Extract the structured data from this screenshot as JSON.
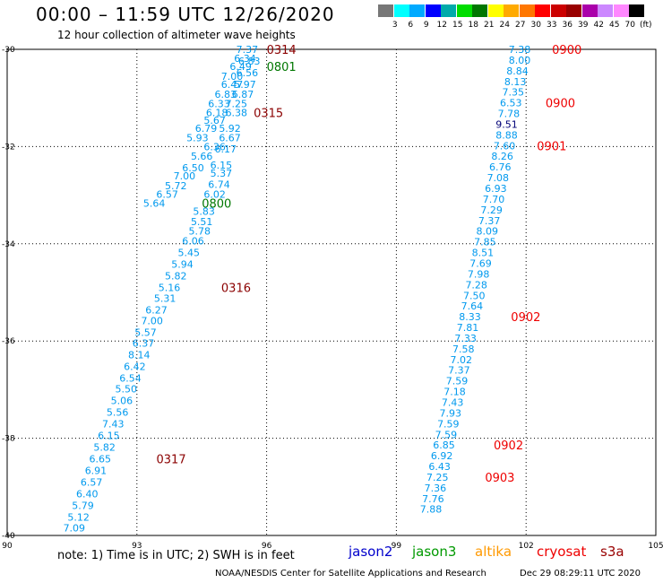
{
  "header": {
    "title": "00:00 – 11:59 UTC 12/26/2020",
    "subtitle": "12 hour collection of altimeter wave heights"
  },
  "colorbar": {
    "colors": [
      "#777777",
      "#00ffff",
      "#00aaff",
      "#0000ff",
      "#00aaaa",
      "#00dd00",
      "#007700",
      "#ffff00",
      "#ffaa00",
      "#ff7700",
      "#ff0000",
      "#cc0000",
      "#990000",
      "#aa00aa",
      "#cc88ff",
      "#ff88ff",
      "#000000"
    ],
    "labels": [
      "3",
      "6",
      "9",
      "12",
      "15",
      "18",
      "21",
      "24",
      "27",
      "30",
      "33",
      "36",
      "39",
      "42",
      "45",
      "70",
      "(ft)"
    ]
  },
  "chart_data": {
    "type": "scatter",
    "title": "00:00 – 11:59 UTC 12/26/2020",
    "xlim": [
      90,
      105
    ],
    "ylim": [
      -40,
      -30
    ],
    "x_ticks": [
      "90",
      "93",
      "96",
      "99",
      "102",
      "105"
    ],
    "y_ticks": [
      "-30",
      "-32",
      "-34",
      "-36",
      "-38",
      "-40"
    ],
    "series": [
      {
        "name": "jason3",
        "color": "#0099ee",
        "points": [
          {
            "x": 95.55,
            "y": -30.0,
            "v": "7.37"
          },
          {
            "x": 95.5,
            "y": -30.18,
            "v": "6.34"
          },
          {
            "x": 95.6,
            "y": -30.24,
            "v": "6.83"
          },
          {
            "x": 95.4,
            "y": -30.35,
            "v": "6.49"
          },
          {
            "x": 95.55,
            "y": -30.48,
            "v": "6.56"
          },
          {
            "x": 95.2,
            "y": -30.55,
            "v": "7.00"
          },
          {
            "x": 95.5,
            "y": -30.72,
            "v": "5.97"
          },
          {
            "x": 95.2,
            "y": -30.72,
            "v": "6.47"
          },
          {
            "x": 95.45,
            "y": -30.92,
            "v": "6.87"
          },
          {
            "x": 95.05,
            "y": -30.92,
            "v": "6.83"
          },
          {
            "x": 95.3,
            "y": -31.12,
            "v": "7.25"
          },
          {
            "x": 94.9,
            "y": -31.12,
            "v": "6.33"
          },
          {
            "x": 95.3,
            "y": -31.3,
            "v": "6.38"
          },
          {
            "x": 94.85,
            "y": -31.3,
            "v": "6.18"
          },
          {
            "x": 94.8,
            "y": -31.46,
            "v": "5.67"
          },
          {
            "x": 95.15,
            "y": -31.62,
            "v": "5.92"
          },
          {
            "x": 94.6,
            "y": -31.62,
            "v": "6.79"
          },
          {
            "x": 95.15,
            "y": -31.82,
            "v": "6.67"
          },
          {
            "x": 94.4,
            "y": -31.82,
            "v": "5.93"
          },
          {
            "x": 94.8,
            "y": -32.0,
            "v": "6.36"
          },
          {
            "x": 95.05,
            "y": -32.05,
            "v": "6.17"
          },
          {
            "x": 94.5,
            "y": -32.2,
            "v": "5.66"
          },
          {
            "x": 94.95,
            "y": -32.38,
            "v": "6.15"
          },
          {
            "x": 94.3,
            "y": -32.44,
            "v": "6.50"
          },
          {
            "x": 94.95,
            "y": -32.55,
            "v": "5.37"
          },
          {
            "x": 94.1,
            "y": -32.6,
            "v": "7.00"
          },
          {
            "x": 94.9,
            "y": -32.78,
            "v": "6.74"
          },
          {
            "x": 93.9,
            "y": -32.8,
            "v": "5.72"
          },
          {
            "x": 94.8,
            "y": -32.98,
            "v": "6.02"
          },
          {
            "x": 93.7,
            "y": -32.98,
            "v": "6.57"
          },
          {
            "x": 93.4,
            "y": -33.16,
            "v": "5.64"
          },
          {
            "x": 94.55,
            "y": -33.33,
            "v": "5.83"
          },
          {
            "x": 94.5,
            "y": -33.54,
            "v": "5.51"
          },
          {
            "x": 94.45,
            "y": -33.74,
            "v": "5.78"
          },
          {
            "x": 94.3,
            "y": -33.94,
            "v": "6.06"
          },
          {
            "x": 94.2,
            "y": -34.18,
            "v": "5.45"
          },
          {
            "x": 94.05,
            "y": -34.42,
            "v": "5.94"
          },
          {
            "x": 93.9,
            "y": -34.66,
            "v": "5.82"
          },
          {
            "x": 93.75,
            "y": -34.9,
            "v": "5.16"
          },
          {
            "x": 93.65,
            "y": -35.12,
            "v": "5.31"
          },
          {
            "x": 93.45,
            "y": -35.36,
            "v": "6.27"
          },
          {
            "x": 93.35,
            "y": -35.58,
            "v": "7.00"
          },
          {
            "x": 93.2,
            "y": -35.82,
            "v": "5.57"
          },
          {
            "x": 93.15,
            "y": -36.04,
            "v": "6.37"
          },
          {
            "x": 93.05,
            "y": -36.28,
            "v": "8.14"
          },
          {
            "x": 92.95,
            "y": -36.52,
            "v": "6.42"
          },
          {
            "x": 92.85,
            "y": -36.76,
            "v": "6.54"
          },
          {
            "x": 92.75,
            "y": -36.98,
            "v": "5.50"
          },
          {
            "x": 92.65,
            "y": -37.22,
            "v": "5.06"
          },
          {
            "x": 92.55,
            "y": -37.46,
            "v": "5.56"
          },
          {
            "x": 92.45,
            "y": -37.7,
            "v": "7.43"
          },
          {
            "x": 92.35,
            "y": -37.94,
            "v": "6.15"
          },
          {
            "x": 92.25,
            "y": -38.18,
            "v": "5.82"
          },
          {
            "x": 92.15,
            "y": -38.42,
            "v": "6.65"
          },
          {
            "x": 92.05,
            "y": -38.66,
            "v": "6.91"
          },
          {
            "x": 91.95,
            "y": -38.9,
            "v": "6.57"
          },
          {
            "x": 91.85,
            "y": -39.14,
            "v": "6.40"
          },
          {
            "x": 91.75,
            "y": -39.38,
            "v": "5.79"
          },
          {
            "x": 91.65,
            "y": -39.62,
            "v": "5.12"
          },
          {
            "x": 91.55,
            "y": -39.84,
            "v": "7.09"
          },
          {
            "x": 101.85,
            "y": -30.0,
            "v": "7.38"
          },
          {
            "x": 101.85,
            "y": -30.22,
            "v": "8.00"
          },
          {
            "x": 101.8,
            "y": -30.44,
            "v": "8.84"
          },
          {
            "x": 101.75,
            "y": -30.66,
            "v": "8.13"
          },
          {
            "x": 101.7,
            "y": -30.88,
            "v": "7.35"
          },
          {
            "x": 101.65,
            "y": -31.1,
            "v": "6.53"
          },
          {
            "x": 101.6,
            "y": -31.32,
            "v": "7.78"
          },
          {
            "x": 101.55,
            "y": -31.76,
            "v": "8.88"
          },
          {
            "x": 101.5,
            "y": -31.98,
            "v": "7.60"
          },
          {
            "x": 101.45,
            "y": -32.2,
            "v": "8.26"
          },
          {
            "x": 101.4,
            "y": -32.42,
            "v": "6.76"
          },
          {
            "x": 101.35,
            "y": -32.64,
            "v": "7.08"
          },
          {
            "x": 101.3,
            "y": -32.86,
            "v": "6.93"
          },
          {
            "x": 101.25,
            "y": -33.08,
            "v": "7.70"
          },
          {
            "x": 101.2,
            "y": -33.3,
            "v": "7.29"
          },
          {
            "x": 101.15,
            "y": -33.52,
            "v": "7.37"
          },
          {
            "x": 101.1,
            "y": -33.74,
            "v": "8.09"
          },
          {
            "x": 101.05,
            "y": -33.96,
            "v": "7.85"
          },
          {
            "x": 101.0,
            "y": -34.18,
            "v": "8.51"
          },
          {
            "x": 100.95,
            "y": -34.4,
            "v": "7.69"
          },
          {
            "x": 100.9,
            "y": -34.62,
            "v": "7.98"
          },
          {
            "x": 100.85,
            "y": -34.84,
            "v": "7.28"
          },
          {
            "x": 100.8,
            "y": -35.06,
            "v": "7.50"
          },
          {
            "x": 100.75,
            "y": -35.28,
            "v": "7.64"
          },
          {
            "x": 100.7,
            "y": -35.5,
            "v": "8.33"
          },
          {
            "x": 100.65,
            "y": -35.72,
            "v": "7.81"
          },
          {
            "x": 100.6,
            "y": -35.94,
            "v": "7.33"
          },
          {
            "x": 100.55,
            "y": -36.16,
            "v": "7.58"
          },
          {
            "x": 100.5,
            "y": -36.38,
            "v": "7.02"
          },
          {
            "x": 100.45,
            "y": -36.6,
            "v": "7.37"
          },
          {
            "x": 100.4,
            "y": -36.82,
            "v": "7.59"
          },
          {
            "x": 100.35,
            "y": -37.04,
            "v": "7.18"
          },
          {
            "x": 100.3,
            "y": -37.26,
            "v": "7.43"
          },
          {
            "x": 100.25,
            "y": -37.48,
            "v": "7.93"
          },
          {
            "x": 100.2,
            "y": -37.7,
            "v": "7.59"
          },
          {
            "x": 100.15,
            "y": -37.92,
            "v": "7.59"
          },
          {
            "x": 100.1,
            "y": -38.14,
            "v": "6.85"
          },
          {
            "x": 100.05,
            "y": -38.36,
            "v": "6.92"
          },
          {
            "x": 100.0,
            "y": -38.58,
            "v": "6.43"
          },
          {
            "x": 99.95,
            "y": -38.8,
            "v": "7.25"
          },
          {
            "x": 99.9,
            "y": -39.02,
            "v": "7.36"
          },
          {
            "x": 99.85,
            "y": -39.24,
            "v": "7.76"
          },
          {
            "x": 99.8,
            "y": -39.46,
            "v": "7.88"
          }
        ]
      },
      {
        "name": "cryosat",
        "color": "#000077",
        "points": [
          {
            "x": 101.55,
            "y": -31.54,
            "v": "9.51"
          }
        ]
      }
    ],
    "time_labels": [
      {
        "x": 96.0,
        "y": -30.0,
        "v": "0314",
        "color": "#8b0000"
      },
      {
        "x": 96.0,
        "y": -30.35,
        "v": "0801",
        "color": "#007700"
      },
      {
        "x": 95.7,
        "y": -31.3,
        "v": "0315",
        "color": "#8b0000"
      },
      {
        "x": 94.5,
        "y": -33.16,
        "v": "0800",
        "color": "#007700"
      },
      {
        "x": 94.95,
        "y": -34.9,
        "v": "0316",
        "color": "#8b0000"
      },
      {
        "x": 93.45,
        "y": -38.42,
        "v": "0317",
        "color": "#8b0000"
      },
      {
        "x": 102.6,
        "y": -30.0,
        "v": "0900",
        "color": "#ee0000"
      },
      {
        "x": 102.45,
        "y": -31.1,
        "v": "0900",
        "color": "#ee0000"
      },
      {
        "x": 102.25,
        "y": -31.98,
        "v": "0901",
        "color": "#ee0000"
      },
      {
        "x": 101.65,
        "y": -35.5,
        "v": "0902",
        "color": "#ee0000"
      },
      {
        "x": 101.25,
        "y": -38.14,
        "v": "0902",
        "color": "#ee0000"
      },
      {
        "x": 101.05,
        "y": -38.8,
        "v": "0903",
        "color": "#ee0000"
      }
    ]
  },
  "footer": {
    "note": "note:  1) Time is in UTC; 2) SWH is in feet",
    "satellites": [
      {
        "label": "jason2",
        "color": "#0000cc"
      },
      {
        "label": "jason3",
        "color": "#009900"
      },
      {
        "label": "altika",
        "color": "#ff9900"
      },
      {
        "label": "cryosat",
        "color": "#ee0000"
      },
      {
        "label": "s3a",
        "color": "#990000"
      }
    ],
    "credit": "NOAA/NESDIS Center for Satellite Applications and Research",
    "timestamp": "Dec 29 08:29:11 UTC 2020"
  }
}
